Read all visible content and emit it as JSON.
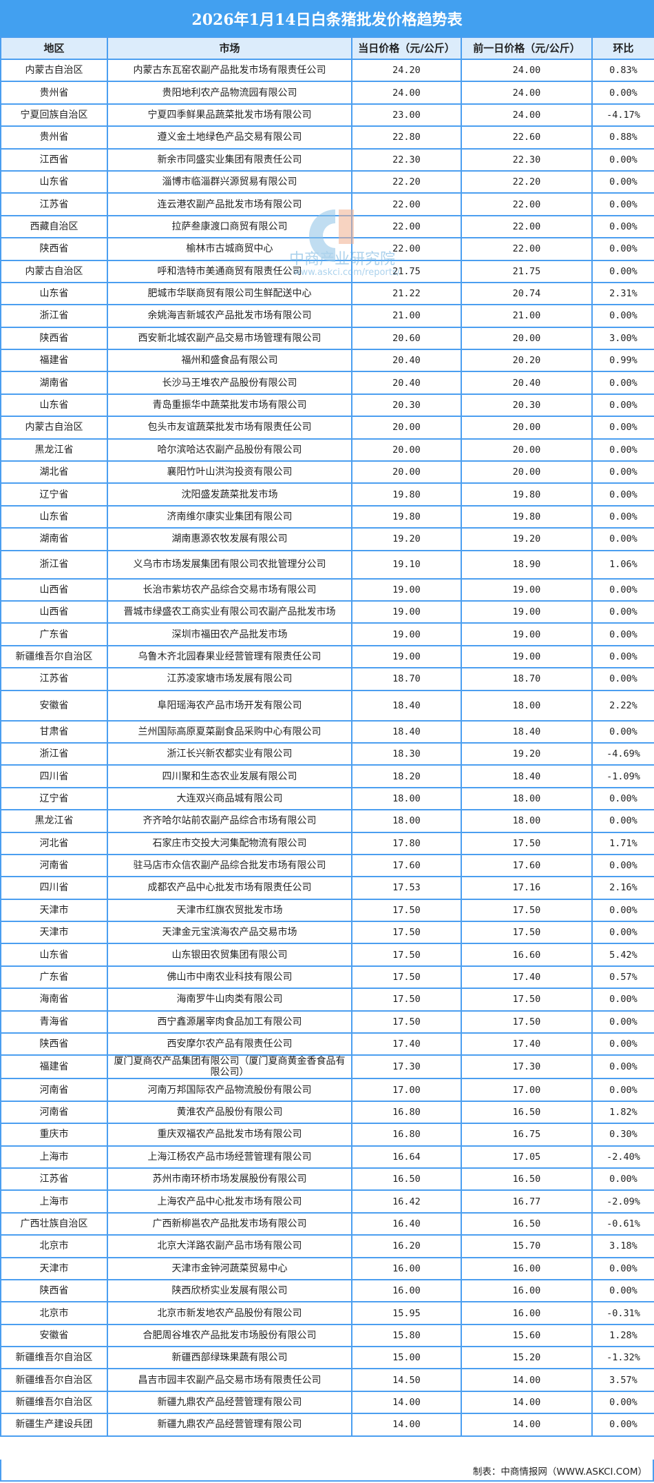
{
  "title": "2026年1月14日白条猪批发价格趋势表",
  "columns": [
    "地区",
    "市场",
    "当日价格（元/公斤）",
    "前一日价格（元/公斤）",
    "环比"
  ],
  "rows": [
    [
      "内蒙古自治区",
      "内蒙古东瓦窑农副产品批发市场有限责任公司",
      "24.20",
      "24.00",
      "0.83%"
    ],
    [
      "贵州省",
      "贵阳地利农产品物流园有限公司",
      "24.00",
      "24.00",
      "0.00%"
    ],
    [
      "宁夏回族自治区",
      "宁夏四季鲜果品蔬菜批发市场有限公司",
      "23.00",
      "24.00",
      "-4.17%"
    ],
    [
      "贵州省",
      "遵义金土地绿色产品交易有限公司",
      "22.80",
      "22.60",
      "0.88%"
    ],
    [
      "江西省",
      "新余市同盛实业集团有限责任公司",
      "22.30",
      "22.30",
      "0.00%"
    ],
    [
      "山东省",
      "淄博市临淄群兴源贸易有限公司",
      "22.20",
      "22.20",
      "0.00%"
    ],
    [
      "江苏省",
      "连云港农副产品批发市场有限公司",
      "22.00",
      "22.00",
      "0.00%"
    ],
    [
      "西藏自治区",
      "拉萨叁康渡口商贸有限公司",
      "22.00",
      "22.00",
      "0.00%"
    ],
    [
      "陕西省",
      "榆林市古城商贸中心",
      "22.00",
      "22.00",
      "0.00%"
    ],
    [
      "内蒙古自治区",
      "呼和浩特市美通商贸有限责任公司",
      "21.75",
      "21.75",
      "0.00%"
    ],
    [
      "山东省",
      "肥城市华联商贸有限公司生鲜配送中心",
      "21.22",
      "20.74",
      "2.31%"
    ],
    [
      "浙江省",
      "余姚海吉新城农产品批发市场有限公司",
      "21.00",
      "21.00",
      "0.00%"
    ],
    [
      "陕西省",
      "西安新北城农副产品交易市场管理有限公司",
      "20.60",
      "20.00",
      "3.00%"
    ],
    [
      "福建省",
      "福州和盛食品有限公司",
      "20.40",
      "20.20",
      "0.99%"
    ],
    [
      "湖南省",
      "长沙马王堆农产品股份有限公司",
      "20.40",
      "20.40",
      "0.00%"
    ],
    [
      "山东省",
      "青岛重振华中蔬菜批发市场有限公司",
      "20.30",
      "20.30",
      "0.00%"
    ],
    [
      "内蒙古自治区",
      "包头市友谊蔬菜批发市场有限责任公司",
      "20.00",
      "20.00",
      "0.00%"
    ],
    [
      "黑龙江省",
      "哈尔滨哈达农副产品股份有限公司",
      "20.00",
      "20.00",
      "0.00%"
    ],
    [
      "湖北省",
      "襄阳竹叶山洪沟投资有限公司",
      "20.00",
      "20.00",
      "0.00%"
    ],
    [
      "辽宁省",
      "沈阳盛发蔬菜批发市场",
      "19.80",
      "19.80",
      "0.00%"
    ],
    [
      "山东省",
      "济南维尔康实业集团有限公司",
      "19.80",
      "19.80",
      "0.00%"
    ],
    [
      "湖南省",
      "湖南惠源农牧发展有限公司",
      "19.20",
      "19.20",
      "0.00%"
    ],
    [
      "浙江省",
      "义乌市市场发展集团有限公司农批管理分公司",
      "19.10",
      "18.90",
      "1.06%"
    ],
    [
      "山西省",
      "长治市紫坊农产品综合交易市场有限公司",
      "19.00",
      "19.00",
      "0.00%"
    ],
    [
      "山西省",
      "晋城市绿盛农工商实业有限公司农副产品批发市场",
      "19.00",
      "19.00",
      "0.00%"
    ],
    [
      "广东省",
      "深圳市福田农产品批发市场",
      "19.00",
      "19.00",
      "0.00%"
    ],
    [
      "新疆维吾尔自治区",
      "乌鲁木齐北园春果业经营管理有限责任公司",
      "19.00",
      "19.00",
      "0.00%"
    ],
    [
      "江苏省",
      "江苏凌家塘市场发展有限公司",
      "18.70",
      "18.70",
      "0.00%"
    ],
    [
      "安徽省",
      "阜阳瑶海农产品市场开发有限公司",
      "18.40",
      "18.00",
      "2.22%"
    ],
    [
      "甘肃省",
      "兰州国际高原夏菜副食品采购中心有限公司",
      "18.40",
      "18.40",
      "0.00%"
    ],
    [
      "浙江省",
      "浙江长兴新农都实业有限公司",
      "18.30",
      "19.20",
      "-4.69%"
    ],
    [
      "四川省",
      "四川聚和生态农业发展有限公司",
      "18.20",
      "18.40",
      "-1.09%"
    ],
    [
      "辽宁省",
      "大连双兴商品城有限公司",
      "18.00",
      "18.00",
      "0.00%"
    ],
    [
      "黑龙江省",
      "齐齐哈尔站前农副产品综合市场有限公司",
      "18.00",
      "18.00",
      "0.00%"
    ],
    [
      "河北省",
      "石家庄市交投大河集配物流有限公司",
      "17.80",
      "17.50",
      "1.71%"
    ],
    [
      "河南省",
      "驻马店市众信农副产品综合批发市场有限公司",
      "17.60",
      "17.60",
      "0.00%"
    ],
    [
      "四川省",
      "成都农产品中心批发市场有限责任公司",
      "17.53",
      "17.16",
      "2.16%"
    ],
    [
      "天津市",
      "天津市红旗农贸批发市场",
      "17.50",
      "17.50",
      "0.00%"
    ],
    [
      "天津市",
      "天津金元宝滨海农产品交易市场",
      "17.50",
      "17.50",
      "0.00%"
    ],
    [
      "山东省",
      "山东银田农贸集团有限公司",
      "17.50",
      "16.60",
      "5.42%"
    ],
    [
      "广东省",
      "佛山市中南农业科技有限公司",
      "17.50",
      "17.40",
      "0.57%"
    ],
    [
      "海南省",
      "海南罗牛山肉类有限公司",
      "17.50",
      "17.50",
      "0.00%"
    ],
    [
      "青海省",
      "西宁鑫源屠宰肉食品加工有限公司",
      "17.50",
      "17.50",
      "0.00%"
    ],
    [
      "陕西省",
      "西安摩尔农产品有限责任公司",
      "17.40",
      "17.40",
      "0.00%"
    ],
    [
      "福建省",
      "厦门夏商农产品集团有限公司（厦门夏商黄金香食品有限公司）",
      "17.30",
      "17.30",
      "0.00%"
    ],
    [
      "河南省",
      "河南万邦国际农产品物流股份有限公司",
      "17.00",
      "17.00",
      "0.00%"
    ],
    [
      "河南省",
      "黄淮农产品股份有限公司",
      "16.80",
      "16.50",
      "1.82%"
    ],
    [
      "重庆市",
      "重庆双福农产品批发市场有限公司",
      "16.80",
      "16.75",
      "0.30%"
    ],
    [
      "上海市",
      "上海江杨农产品市场经营管理有限公司",
      "16.64",
      "17.05",
      "-2.40%"
    ],
    [
      "江苏省",
      "苏州市南环桥市场发展股份有限公司",
      "16.50",
      "16.50",
      "0.00%"
    ],
    [
      "上海市",
      "上海农产品中心批发市场有限公司",
      "16.42",
      "16.77",
      "-2.09%"
    ],
    [
      "广西壮族自治区",
      "广西新柳邕农产品批发市场有限公司",
      "16.40",
      "16.50",
      "-0.61%"
    ],
    [
      "北京市",
      "北京大洋路农副产品市场有限公司",
      "16.20",
      "15.70",
      "3.18%"
    ],
    [
      "天津市",
      "天津市金钟河蔬菜贸易中心",
      "16.00",
      "16.00",
      "0.00%"
    ],
    [
      "陕西省",
      "陕西欣桥实业发展有限公司",
      "16.00",
      "16.00",
      "0.00%"
    ],
    [
      "北京市",
      "北京市新发地农产品股份有限公司",
      "15.95",
      "16.00",
      "-0.31%"
    ],
    [
      "安徽省",
      "合肥周谷堆农产品批发市场股份有限公司",
      "15.80",
      "15.60",
      "1.28%"
    ],
    [
      "新疆维吾尔自治区",
      "新疆西部绿珠果蔬有限公司",
      "15.00",
      "15.20",
      "-1.32%"
    ],
    [
      "新疆维吾尔自治区",
      "昌吉市园丰农副产品交易市场有限责任公司",
      "14.50",
      "14.00",
      "3.57%"
    ],
    [
      "新疆维吾尔自治区",
      "新疆九鼎农产品经营管理有限公司",
      "14.00",
      "14.00",
      "0.00%"
    ],
    [
      "新疆生产建设兵团",
      "新疆九鼎农产品经营管理有限公司",
      "14.00",
      "14.00",
      "0.00%"
    ]
  ],
  "footer": "制表：中商情报网（WWW.ASKCI.COM）",
  "watermark": {
    "name": "中商产业研究院",
    "url": "www.askci.com/reports/"
  },
  "colors": {
    "header_bg": "#42a0f0",
    "column_header_bg": "#dcecfb",
    "border": "#4a9ef0"
  }
}
